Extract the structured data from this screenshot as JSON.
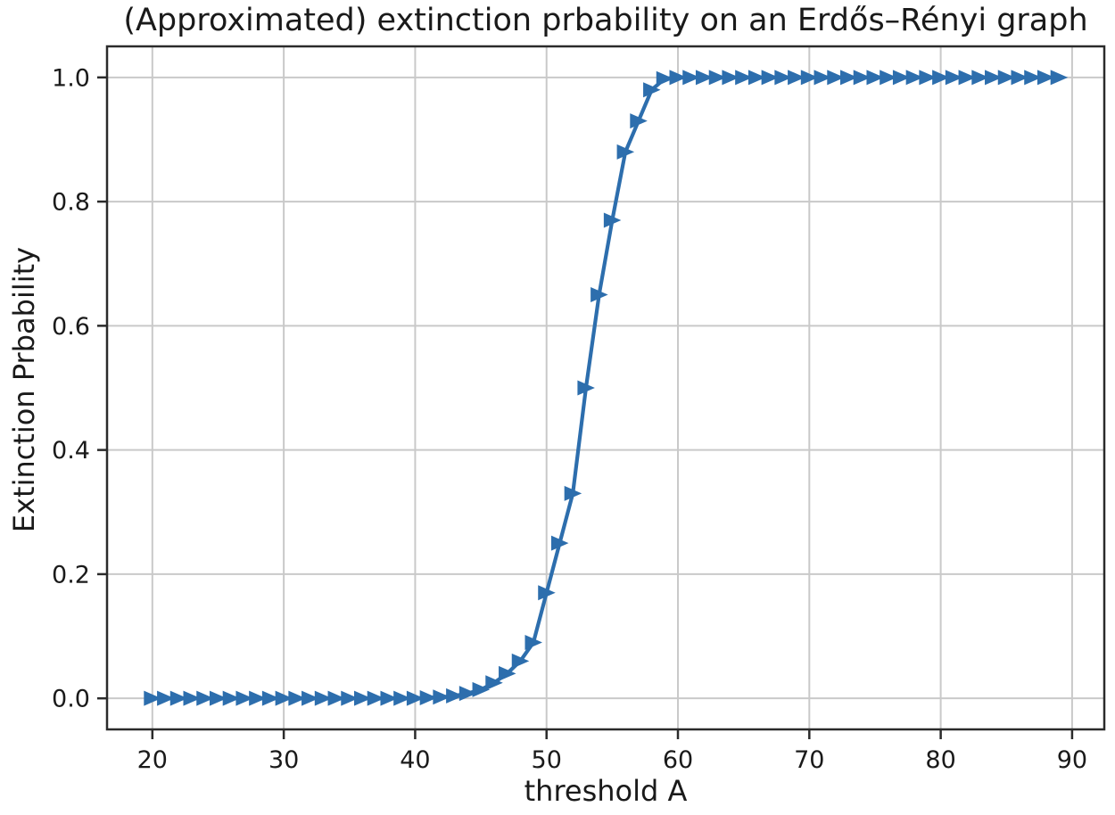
{
  "chart_data": {
    "type": "line",
    "title": "(Approximated) extinction prbability on an Erdős–Rényi graph",
    "xlabel": "threshold A",
    "ylabel": "Extinction Prbability",
    "marker": "triangle-right",
    "grid": true,
    "legend": "none",
    "xlim": [
      16.55,
      92.45
    ],
    "ylim": [
      -0.05,
      1.05
    ],
    "xticks": [
      20,
      30,
      40,
      50,
      60,
      70,
      80,
      90
    ],
    "yticks": [
      0.0,
      0.2,
      0.4,
      0.6,
      0.8,
      1.0
    ],
    "x": [
      20,
      21,
      22,
      23,
      24,
      25,
      26,
      27,
      28,
      29,
      30,
      31,
      32,
      33,
      34,
      35,
      36,
      37,
      38,
      39,
      40,
      41,
      42,
      43,
      44,
      45,
      46,
      47,
      48,
      49,
      50,
      51,
      52,
      53,
      54,
      55,
      56,
      57,
      58,
      59,
      60,
      61,
      62,
      63,
      64,
      65,
      66,
      67,
      68,
      69,
      70,
      71,
      72,
      73,
      74,
      75,
      76,
      77,
      78,
      79,
      80,
      81,
      82,
      83,
      84,
      85,
      86,
      87,
      88,
      89
    ],
    "y": [
      0,
      0,
      0,
      0,
      0,
      0,
      0,
      0,
      0,
      0,
      0,
      0,
      0,
      0,
      0,
      0,
      0,
      0,
      0,
      0,
      0,
      0.001,
      0.002,
      0.004,
      0.008,
      0.014,
      0.025,
      0.04,
      0.06,
      0.09,
      0.17,
      0.25,
      0.33,
      0.5,
      0.65,
      0.77,
      0.88,
      0.93,
      0.98,
      0.998,
      1,
      1,
      1,
      1,
      1,
      1,
      1,
      1,
      1,
      1,
      1,
      1,
      1,
      1,
      1,
      1,
      1,
      1,
      1,
      1,
      1,
      1,
      1,
      1,
      1,
      1,
      1,
      1,
      1,
      1
    ],
    "colors": {
      "line": "#2d6ead",
      "grid": "#c9c9c9",
      "spine": "#2b2b2b",
      "text": "#1a1a1a",
      "background": "#ffffff"
    }
  }
}
